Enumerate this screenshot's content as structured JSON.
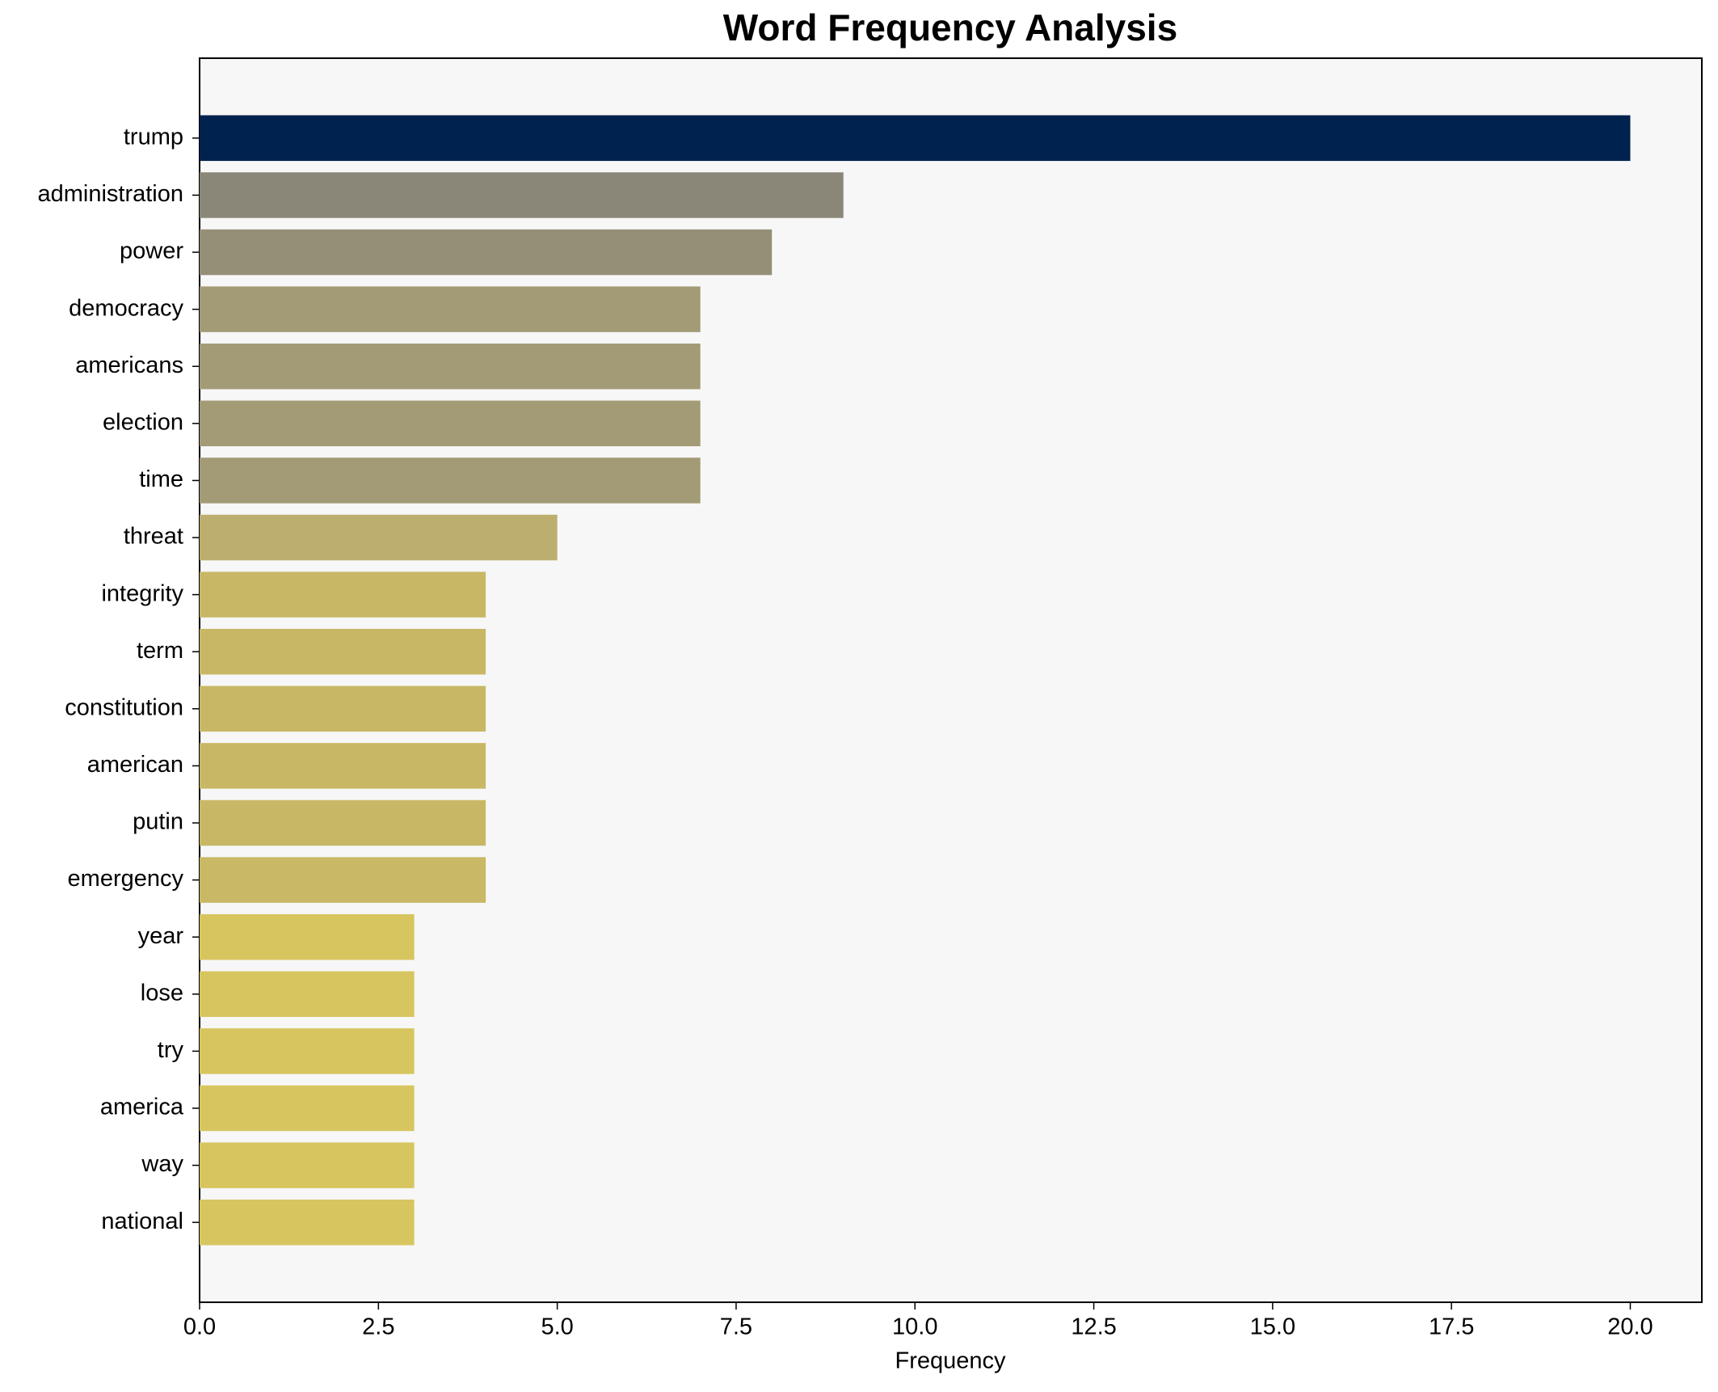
{
  "chart_data": {
    "type": "barh",
    "title": "Word Frequency Analysis",
    "xlabel": "Frequency",
    "categories": [
      "trump",
      "administration",
      "power",
      "democracy",
      "americans",
      "election",
      "time",
      "threat",
      "integrity",
      "term",
      "constitution",
      "american",
      "putin",
      "emergency",
      "year",
      "lose",
      "try",
      "america",
      "way",
      "national"
    ],
    "values": [
      20,
      9,
      8,
      7,
      7,
      7,
      7,
      5,
      4,
      4,
      4,
      4,
      4,
      4,
      3,
      3,
      3,
      3,
      3,
      3
    ],
    "colors": [
      "#00224e",
      "#8a8678",
      "#958f78",
      "#a39b76",
      "#a39b76",
      "#a39b76",
      "#a39b76",
      "#bcae6e",
      "#c8b866",
      "#c8b866",
      "#c8b866",
      "#c8b866",
      "#c8b866",
      "#c9b865",
      "#d7c55f",
      "#d7c55f",
      "#d7c55f",
      "#d7c55f",
      "#d7c55f",
      "#d7c55f"
    ],
    "xlim": [
      0,
      21
    ],
    "xticks": [
      {
        "value": 0,
        "label": "0.0"
      },
      {
        "value": 2.5,
        "label": "2.5"
      },
      {
        "value": 5,
        "label": "5.0"
      },
      {
        "value": 7.5,
        "label": "7.5"
      },
      {
        "value": 10,
        "label": "10.0"
      },
      {
        "value": 12.5,
        "label": "12.5"
      },
      {
        "value": 15,
        "label": "15.0"
      },
      {
        "value": 17.5,
        "label": "17.5"
      },
      {
        "value": 20,
        "label": "20.0"
      }
    ],
    "background": "#f7f7f7"
  }
}
